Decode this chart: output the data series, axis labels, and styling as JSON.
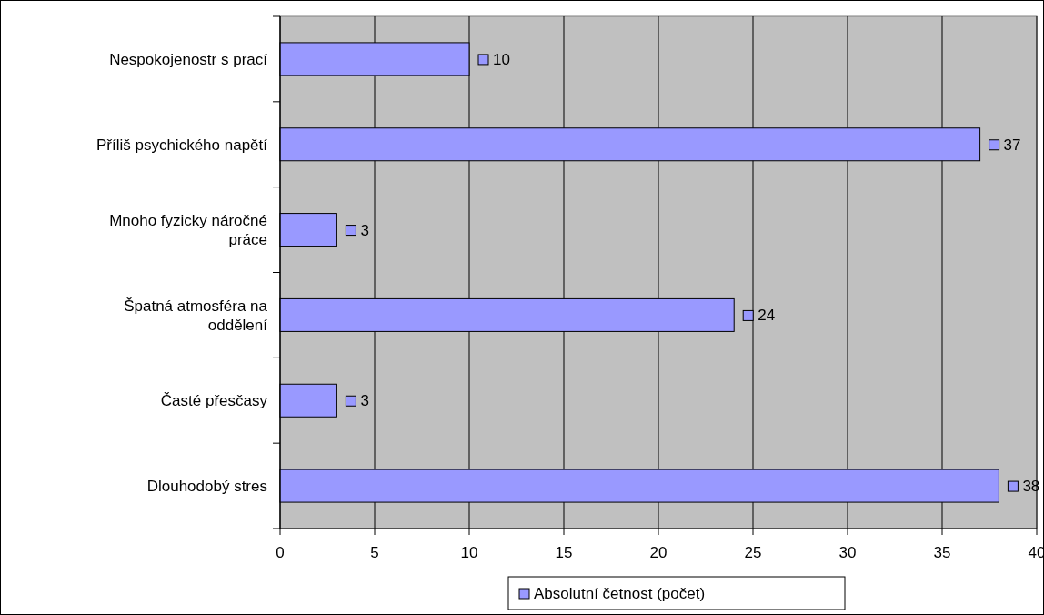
{
  "chart_data": {
    "type": "bar",
    "orientation": "horizontal",
    "categories": [
      "Nespokojenostr s prací",
      "Příliš psychického napětí",
      "Mnoho fyzicky náročné práce",
      "Špatná atmosféra na oddělení",
      "Časté přesčasy",
      "Dlouhodobý stres"
    ],
    "series": [
      {
        "name": "Absolutní četnost (počet)",
        "color": "#9999ff",
        "values": [
          10,
          37,
          3,
          24,
          3,
          38
        ]
      }
    ],
    "xlim": [
      0,
      40
    ],
    "xticks": [
      0,
      5,
      10,
      15,
      20,
      25,
      30,
      35,
      40
    ],
    "grid": "x",
    "legend": "bottom",
    "data_labels": true
  }
}
